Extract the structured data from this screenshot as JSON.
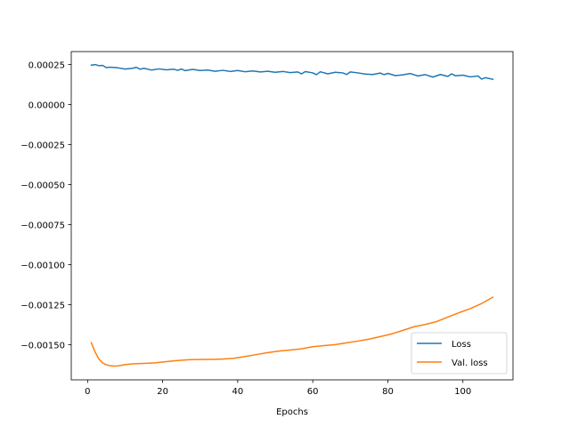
{
  "chart_data": {
    "type": "line",
    "title": "",
    "xlabel": "Epochs",
    "ylabel": "",
    "xlim": [
      -4.35,
      113.35
    ],
    "ylim": [
      -0.00172,
      0.00033
    ],
    "x_ticks": [
      0,
      20,
      40,
      60,
      80,
      100
    ],
    "x_tick_labels": [
      "0",
      "20",
      "40",
      "60",
      "80",
      "100"
    ],
    "y_ticks": [
      0.00025,
      0.0,
      -0.00025,
      -0.0005,
      -0.00075,
      -0.001,
      -0.00125,
      -0.0015
    ],
    "y_tick_labels": [
      "0.00025",
      "0.00000",
      "−0.00025",
      "−0.00050",
      "−0.00075",
      "−0.00100",
      "−0.00125",
      "−0.00150"
    ],
    "grid": false,
    "legend_position": "lower right",
    "series": [
      {
        "name": "Loss",
        "color": "#1f77b4",
        "points": [
          [
            1,
            0.000245
          ],
          [
            2,
            0.000249
          ],
          [
            3,
            0.000242
          ],
          [
            4,
            0.000244
          ],
          [
            5,
            0.00023
          ],
          [
            6,
            0.000233
          ],
          [
            8,
            0.000229
          ],
          [
            10,
            0.000221
          ],
          [
            12,
            0.000226
          ],
          [
            13,
            0.000232
          ],
          [
            14,
            0.00022
          ],
          [
            15,
            0.000226
          ],
          [
            17,
            0.000215
          ],
          [
            19,
            0.000222
          ],
          [
            21,
            0.000216
          ],
          [
            23,
            0.00022
          ],
          [
            24,
            0.000213
          ],
          [
            25,
            0.000221
          ],
          [
            26,
            0.000211
          ],
          [
            28,
            0.000219
          ],
          [
            30,
            0.000212
          ],
          [
            32,
            0.000215
          ],
          [
            34,
            0.000207
          ],
          [
            36,
            0.000213
          ],
          [
            38,
            0.000206
          ],
          [
            40,
            0.000212
          ],
          [
            42,
            0.000204
          ],
          [
            44,
            0.000209
          ],
          [
            46,
            0.000203
          ],
          [
            48,
            0.000207
          ],
          [
            50,
            0.000201
          ],
          [
            52,
            0.000206
          ],
          [
            54,
            0.000199
          ],
          [
            56,
            0.000203
          ],
          [
            57,
            0.000191
          ],
          [
            58,
            0.000205
          ],
          [
            60,
            0.000197
          ],
          [
            61,
            0.000186
          ],
          [
            62,
            0.000204
          ],
          [
            64,
            0.000191
          ],
          [
            66,
            0.000201
          ],
          [
            68,
            0.000197
          ],
          [
            69,
            0.000187
          ],
          [
            70,
            0.000203
          ],
          [
            72,
            0.000197
          ],
          [
            74,
            0.00019
          ],
          [
            76,
            0.000187
          ],
          [
            78,
            0.000196
          ],
          [
            79,
            0.000186
          ],
          [
            80,
            0.000194
          ],
          [
            82,
            0.00018
          ],
          [
            84,
            0.000185
          ],
          [
            86,
            0.000193
          ],
          [
            88,
            0.000178
          ],
          [
            90,
            0.000186
          ],
          [
            92,
            0.000171
          ],
          [
            94,
            0.000187
          ],
          [
            96,
            0.000175
          ],
          [
            97,
            0.000191
          ],
          [
            98,
            0.000179
          ],
          [
            100,
            0.000183
          ],
          [
            102,
            0.000172
          ],
          [
            104,
            0.000178
          ],
          [
            105,
            0.000158
          ],
          [
            106,
            0.000167
          ],
          [
            108,
            0.000157
          ]
        ]
      },
      {
        "name": "Val. loss",
        "color": "#ff7f0e",
        "points": [
          [
            1,
            -0.001488
          ],
          [
            2,
            -0.001546
          ],
          [
            3,
            -0.00159
          ],
          [
            4,
            -0.001614
          ],
          [
            5,
            -0.001626
          ],
          [
            6,
            -0.001632
          ],
          [
            7,
            -0.001634
          ],
          [
            8,
            -0.001633
          ],
          [
            10,
            -0.001625
          ],
          [
            12,
            -0.00162
          ],
          [
            15,
            -0.001617
          ],
          [
            18,
            -0.001614
          ],
          [
            21,
            -0.001606
          ],
          [
            24,
            -0.001599
          ],
          [
            27,
            -0.001594
          ],
          [
            30,
            -0.001593
          ],
          [
            33,
            -0.001592
          ],
          [
            36,
            -0.00159
          ],
          [
            39,
            -0.001585
          ],
          [
            42,
            -0.001574
          ],
          [
            45,
            -0.001562
          ],
          [
            48,
            -0.00155
          ],
          [
            51,
            -0.00154
          ],
          [
            54,
            -0.001534
          ],
          [
            57,
            -0.001526
          ],
          [
            60,
            -0.001513
          ],
          [
            63,
            -0.001506
          ],
          [
            66,
            -0.0015
          ],
          [
            69,
            -0.001489
          ],
          [
            72,
            -0.001478
          ],
          [
            75,
            -0.001466
          ],
          [
            78,
            -0.00145
          ],
          [
            81,
            -0.001433
          ],
          [
            84,
            -0.001411
          ],
          [
            87,
            -0.001388
          ],
          [
            90,
            -0.001374
          ],
          [
            93,
            -0.001356
          ],
          [
            96,
            -0.001328
          ],
          [
            99,
            -0.0013
          ],
          [
            102,
            -0.001275
          ],
          [
            105,
            -0.001243
          ],
          [
            108,
            -0.001204
          ]
        ]
      }
    ]
  }
}
